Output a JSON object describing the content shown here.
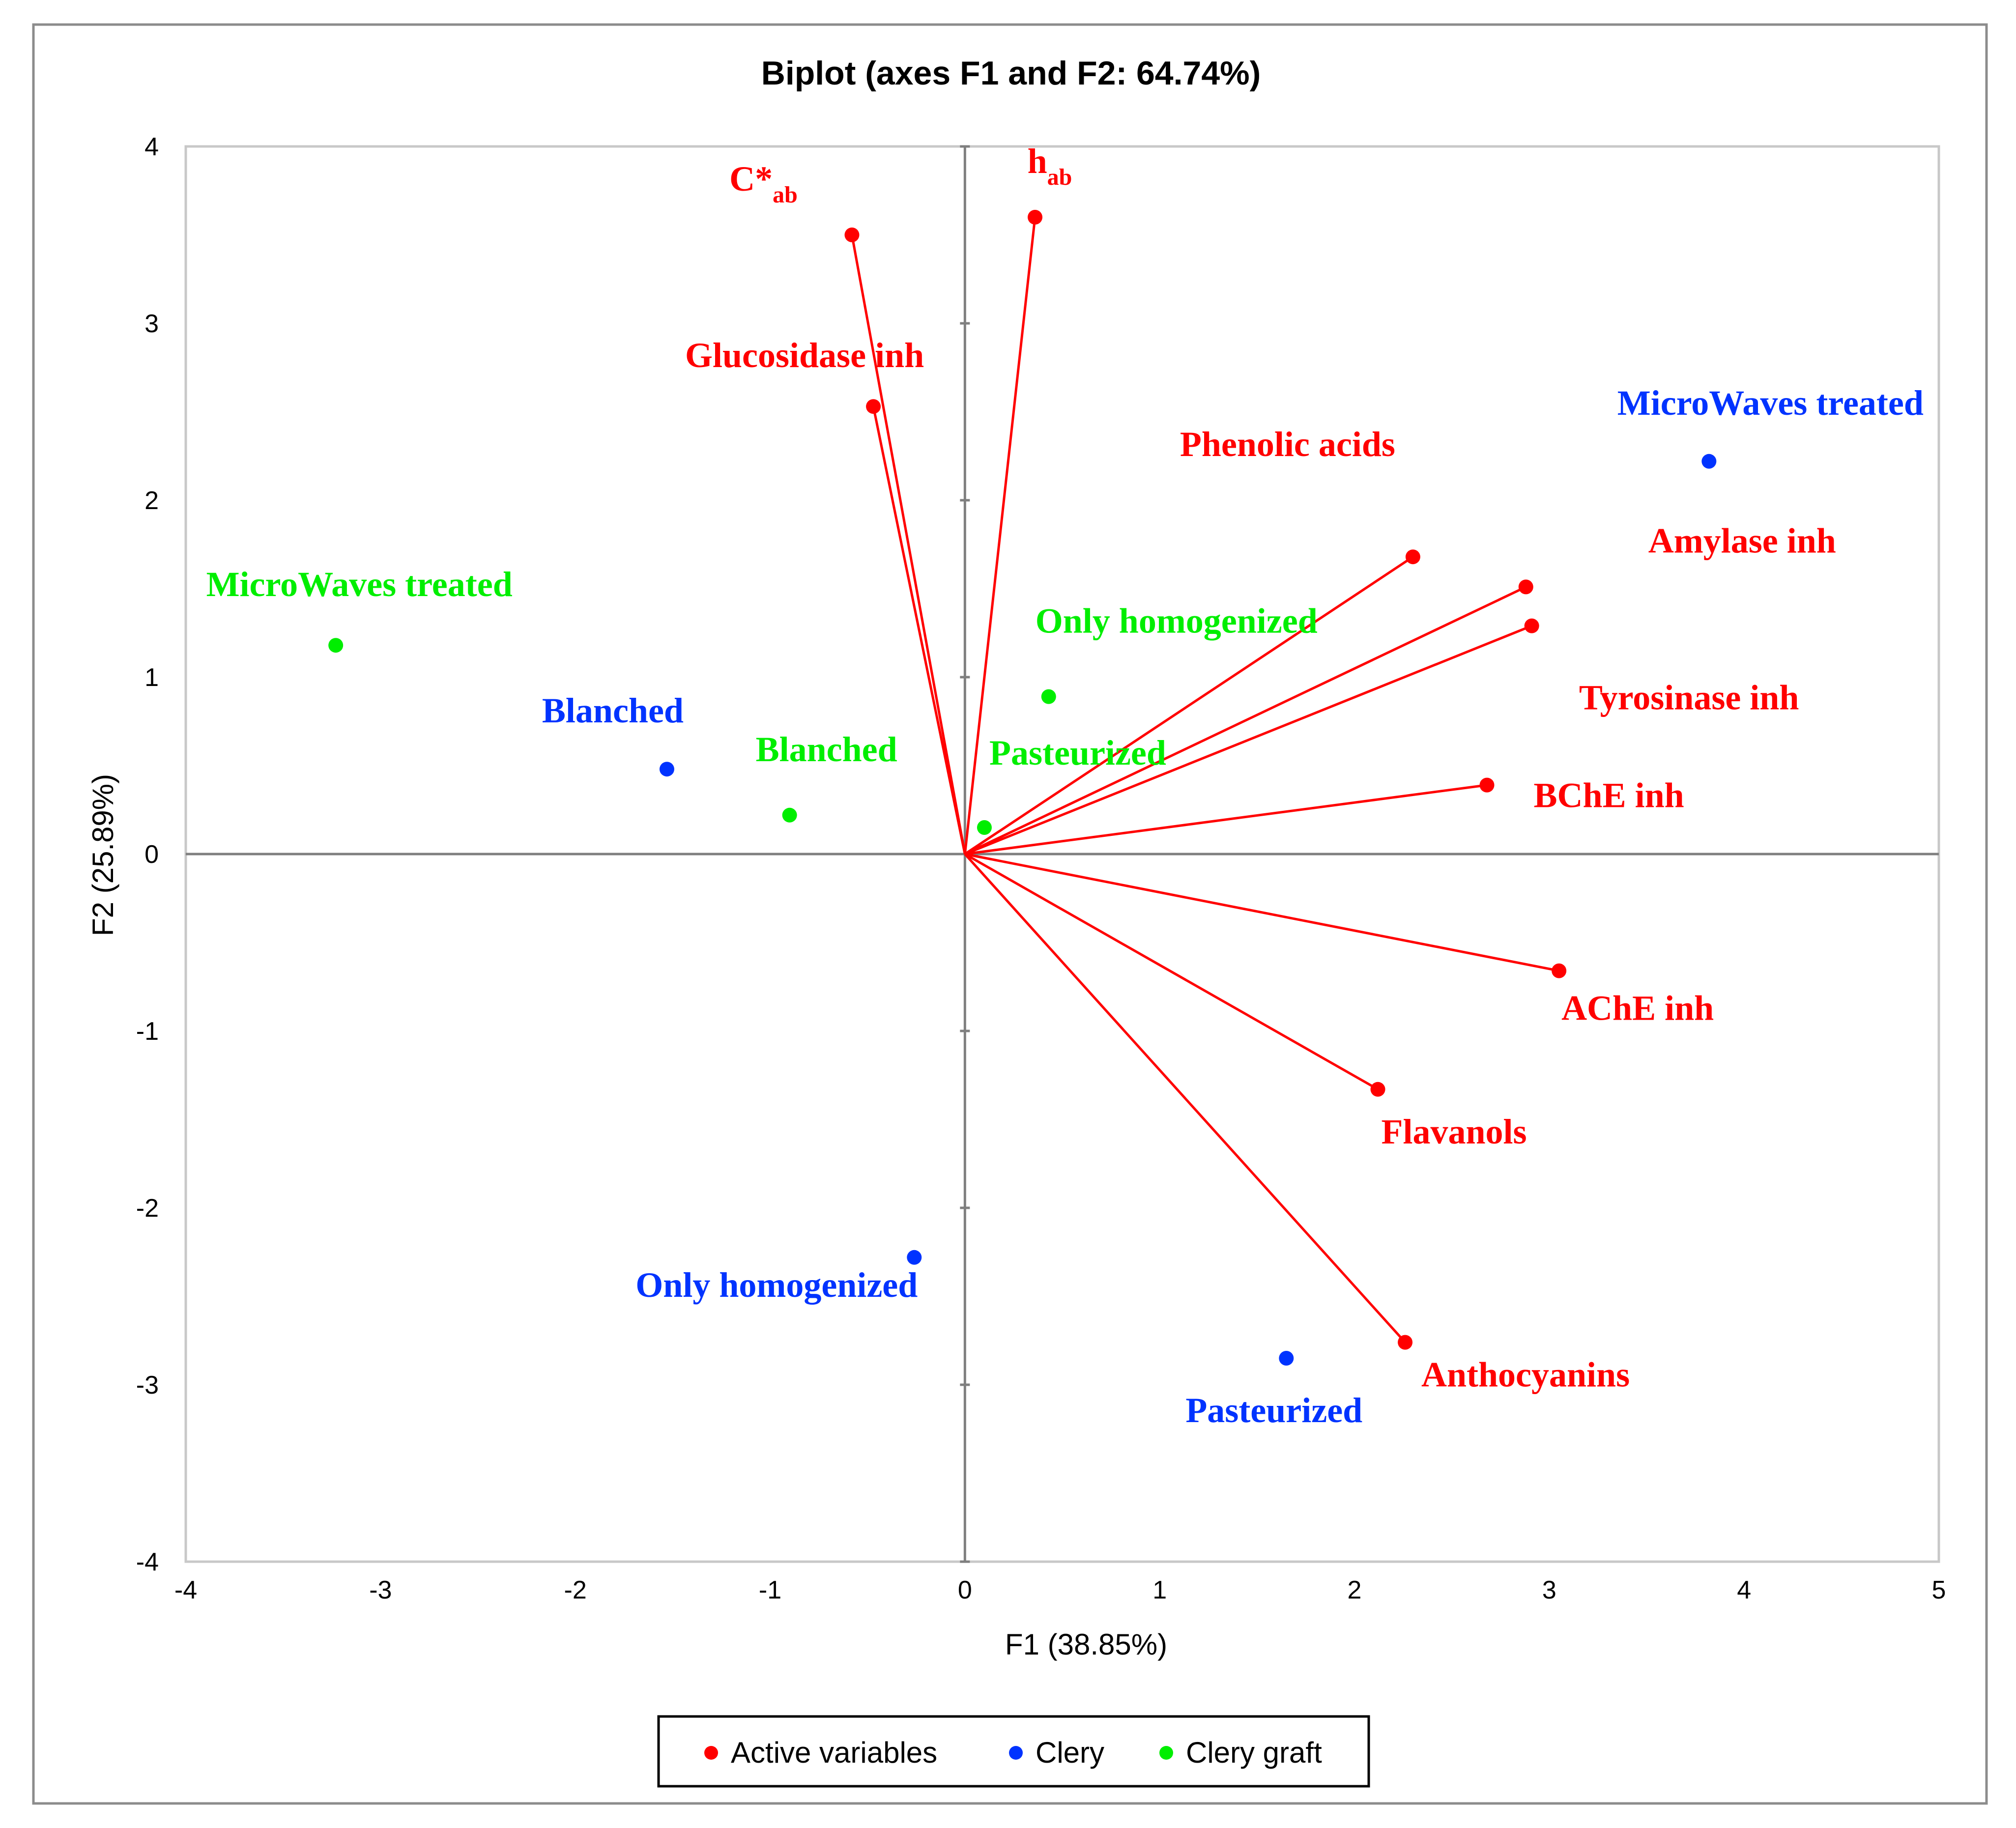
{
  "chart_data": {
    "type": "scatter",
    "title": "Biplot (axes F1 and F2: 64.74%)",
    "xlabel": "F1 (38.85%)",
    "ylabel": "F2 (25.89%)",
    "xlim": [
      -4,
      5
    ],
    "ylim": [
      -4,
      4
    ],
    "x_ticks": [
      "-4",
      "-3",
      "-2",
      "-1",
      "0",
      "1",
      "2",
      "3",
      "4",
      "5"
    ],
    "y_ticks": [
      "4",
      "3",
      "2",
      "1",
      "0",
      "-1",
      "-2",
      "-3",
      "-4"
    ],
    "grid": false,
    "legend_position": "bottom-center",
    "colors": {
      "active_variables": "#ff0000",
      "clery": "#0033ff",
      "clery_graft": "#00ee00",
      "axis": "#7f7f7f"
    },
    "series": [
      {
        "key": "active_variables",
        "name": "Active variables",
        "style": "vectors",
        "points": [
          {
            "label": "C*",
            "subscript": "ab",
            "x": -0.58,
            "y": 3.5
          },
          {
            "label": "h",
            "subscript": "ab",
            "x": 0.36,
            "y": 3.6
          },
          {
            "label": "Glucosidase inh",
            "x": -0.47,
            "y": 2.53
          },
          {
            "label": "Phenolic acids",
            "x": 2.3,
            "y": 1.68
          },
          {
            "label": "Amylase inh",
            "x": 2.88,
            "y": 1.51
          },
          {
            "label": "Tyrosinase inh",
            "x": 2.91,
            "y": 1.29
          },
          {
            "label": "BChE inh",
            "x": 2.68,
            "y": 0.39
          },
          {
            "label": "AChE inh",
            "x": 3.05,
            "y": -0.66
          },
          {
            "label": "Flavanols",
            "x": 2.12,
            "y": -1.33
          },
          {
            "label": "Anthocyanins",
            "x": 2.26,
            "y": -2.76
          }
        ]
      },
      {
        "key": "clery",
        "name": "Clery",
        "style": "points",
        "points": [
          {
            "label": "MicroWaves treated",
            "x": 3.82,
            "y": 2.22
          },
          {
            "label": "Blanched",
            "x": -1.53,
            "y": 0.48
          },
          {
            "label": "Only homogenized",
            "x": -0.26,
            "y": -2.28
          },
          {
            "label": "Pasteurized",
            "x": 1.65,
            "y": -2.85
          }
        ]
      },
      {
        "key": "clery_graft",
        "name": "Clery graft",
        "style": "points",
        "points": [
          {
            "label": "MicroWaves treated",
            "x": -3.23,
            "y": 1.18
          },
          {
            "label": "Only homogenized",
            "x": 0.43,
            "y": 0.89
          },
          {
            "label": "Blanched",
            "x": -0.9,
            "y": 0.22
          },
          {
            "label": "Pasteurized",
            "x": 0.1,
            "y": 0.15
          }
        ]
      }
    ]
  }
}
